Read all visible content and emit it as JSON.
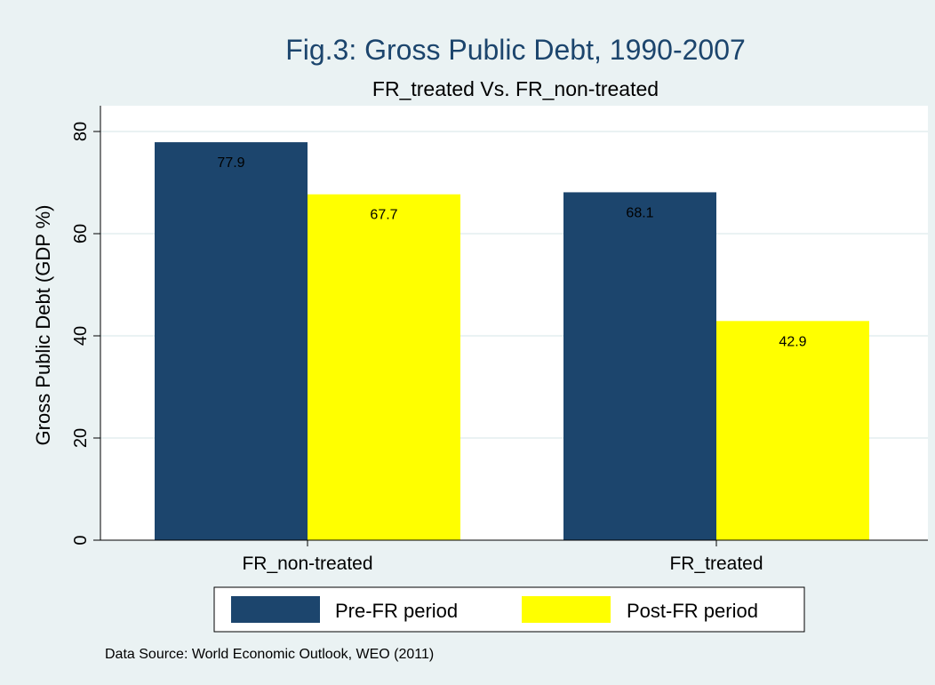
{
  "chart_data": {
    "type": "bar",
    "title": "Fig.3: Gross Public Debt, 1990-2007",
    "subtitle": "FR_treated Vs. FR_non-treated",
    "xlabel": "",
    "ylabel": "Gross Public Debt (GDP %)",
    "ylim": [
      0,
      85
    ],
    "yticks": [
      "0",
      "20",
      "40",
      "60",
      "80"
    ],
    "grid": true,
    "categories": [
      "FR_non-treated",
      "FR_treated"
    ],
    "series": [
      {
        "name": "Pre-FR period",
        "values": [
          77.9,
          68.1
        ],
        "labels": [
          "77.9",
          "68.1"
        ],
        "color": "#1c456d"
      },
      {
        "name": "Post-FR period",
        "values": [
          67.7,
          42.9
        ],
        "labels": [
          "67.7",
          "42.9"
        ],
        "color": "#ffff00"
      }
    ],
    "legend_position": "bottom",
    "note": "Data Source: World Economic Outlook, WEO (2011)"
  },
  "colors": {
    "background": "#eaf2f3",
    "plot_background": "#ffffff",
    "grid": "#eaf2f3",
    "title": "#1c456d"
  }
}
